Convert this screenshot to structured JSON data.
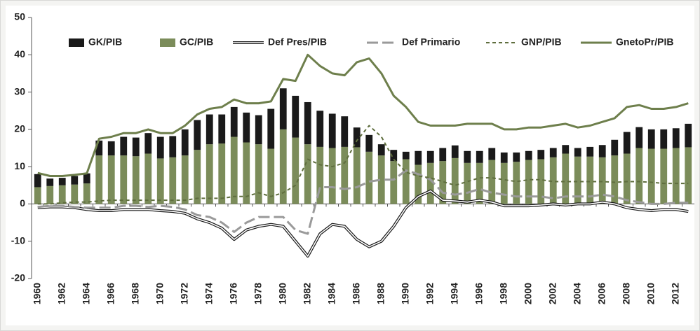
{
  "chart_data": {
    "type": "bar",
    "categories": [
      "1960",
      null,
      "1962",
      null,
      "1964",
      null,
      "1966",
      null,
      "1968",
      null,
      "1970",
      null,
      "1972",
      null,
      "1974",
      null,
      "1976",
      null,
      "1978",
      null,
      "1980",
      null,
      "1982",
      null,
      "1984",
      null,
      "1986",
      null,
      "1988",
      null,
      "1990",
      null,
      "1992",
      null,
      "1994",
      null,
      "1996",
      null,
      "1998",
      null,
      "2000",
      null,
      "2002",
      null,
      "2004",
      null,
      "2006",
      null,
      "2008",
      null,
      "2010",
      null,
      "2012",
      null
    ],
    "series": [
      {
        "name": "GK/PIB",
        "type": "bar",
        "color": "#1a1a1a",
        "values": [
          3.5,
          2,
          2,
          2.3,
          2.7,
          4,
          3.8,
          5,
          5,
          5.5,
          5.8,
          5.7,
          7,
          8,
          8,
          7.8,
          8,
          8,
          7.8,
          10.7,
          11,
          11.2,
          11.3,
          9.7,
          9.2,
          8.2,
          5.3,
          4.5,
          3,
          3,
          2,
          3.7,
          3.2,
          3.5,
          3.4,
          3.2,
          3.2,
          3.2,
          2.8,
          2.5,
          2.4,
          2.5,
          2.5,
          2.3,
          2.3,
          2.6,
          3.3,
          4.2,
          5.8,
          5.6,
          5.2,
          5.2,
          5.3,
          6.3
        ]
      },
      {
        "name": "GC/PIB",
        "type": "bar",
        "color": "#7b8c5a",
        "values": [
          4.5,
          4.8,
          5,
          5.2,
          5.5,
          13,
          13,
          13,
          12.8,
          13.5,
          12.2,
          12.5,
          13,
          14.5,
          16,
          16.2,
          18,
          16.5,
          16,
          14.8,
          20,
          17.8,
          16,
          15.3,
          15,
          15.3,
          15.2,
          14,
          13,
          11.5,
          12,
          10.5,
          11,
          11.5,
          12.3,
          11,
          11,
          11.8,
          11,
          11.3,
          11.8,
          12,
          12.5,
          13.5,
          12.7,
          12.7,
          12.5,
          13,
          13.5,
          15,
          14.8,
          14.8,
          15,
          15.2
        ]
      },
      {
        "name": "Def  Pres/PIB",
        "type": "line",
        "line_style": "double",
        "color": "#1a1a1a",
        "values": [
          -1,
          -0.8,
          -0.8,
          -1,
          -1.5,
          -1.8,
          -1.8,
          -1.5,
          -1.5,
          -1.5,
          -1.8,
          -2,
          -2.5,
          -4,
          -5,
          -6.5,
          -9.5,
          -7,
          -6,
          -5.5,
          -6,
          -10,
          -14,
          -8,
          -5.5,
          -6,
          -9.5,
          -11.5,
          -10,
          -6,
          -1,
          2,
          3.5,
          1,
          0.8,
          0.5,
          1,
          0.5,
          -0.5,
          -0.5,
          -0.5,
          -0.3,
          0,
          -0.3,
          0,
          0,
          0.5,
          0,
          -1,
          -1.5,
          -1.8,
          -1.5,
          -1.5,
          -2
        ]
      },
      {
        "name": "Def Primario",
        "type": "line",
        "line_style": "dashed",
        "color": "#9a9a9a",
        "values": [
          -0.8,
          -0.5,
          -0.5,
          -0.8,
          -1,
          -1,
          -1,
          -0.5,
          -0.5,
          -0.8,
          -0.5,
          -0.8,
          -1.5,
          -3,
          -3.5,
          -5,
          -7.5,
          -5,
          -3.5,
          -3.5,
          -3.5,
          -7,
          -8,
          4.5,
          4.5,
          4,
          4.5,
          6,
          6.5,
          6.5,
          9,
          8,
          6.5,
          3,
          2.5,
          3,
          4,
          3,
          2.5,
          2,
          2,
          2,
          1.5,
          2,
          2,
          2,
          2.5,
          2,
          1,
          0.5,
          0,
          0,
          0.3,
          0.3
        ]
      },
      {
        "name": "GNP/PIB",
        "type": "line",
        "line_style": "dotted",
        "color": "#5f6e3e",
        "values": [
          0,
          0,
          0.3,
          0.5,
          0.5,
          0.8,
          1,
          1,
          1,
          1,
          1,
          1,
          1,
          1.5,
          1.5,
          1.5,
          2,
          2,
          3,
          2,
          3,
          5,
          12,
          10.5,
          10,
          11,
          17,
          21,
          18,
          12,
          8.5,
          7.5,
          7,
          6,
          5,
          6,
          7,
          7,
          6.5,
          6,
          6.5,
          6.5,
          6,
          6,
          6,
          6,
          6,
          5.8,
          6,
          6,
          5.8,
          5.5,
          5.5,
          5.5
        ]
      },
      {
        "name": "GnetoPr/PIB",
        "type": "line",
        "line_style": "solid",
        "color": "#6e7f4c",
        "values": [
          8.3,
          7.5,
          7.5,
          7.8,
          8.2,
          17.5,
          18,
          19,
          19,
          20,
          19,
          19,
          21,
          24,
          25.5,
          26,
          28,
          27,
          27,
          27.5,
          33.5,
          33,
          40,
          37,
          35,
          34.5,
          38,
          39,
          35,
          29,
          26,
          22,
          21,
          21,
          21,
          21.5,
          21.5,
          21.5,
          20,
          20,
          20.5,
          20.5,
          21,
          21.5,
          20.5,
          21,
          22,
          23,
          26,
          26.5,
          25.5,
          25.5,
          26,
          27
        ]
      }
    ],
    "ylim": [
      -20,
      50
    ],
    "yticks": [
      -20,
      -10,
      0,
      10,
      20,
      30,
      40,
      50
    ],
    "legend": "top"
  }
}
